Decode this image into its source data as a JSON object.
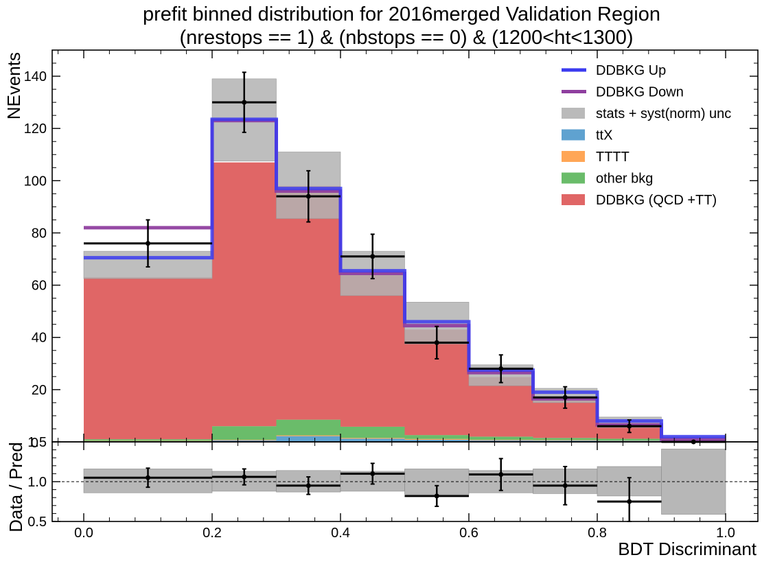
{
  "chart_data": {
    "type": "bar",
    "title_line1": "prefit binned distribution for 2016merged Validation Region",
    "title_line2": "(nrestops == 1) & (nbstops == 0) & (1200<ht<1300)",
    "xlabel": "BDT Discriminant",
    "ylabel_top": "NEvents",
    "ylabel_bottom": "Data / Pred",
    "xlim": [
      0.0,
      1.0
    ],
    "ylim_top": [
      0,
      150
    ],
    "ylim_bottom": [
      0.5,
      1.5
    ],
    "bin_edges": [
      0.0,
      0.2,
      0.3,
      0.4,
      0.5,
      0.6,
      0.7,
      0.8,
      0.9,
      1.0
    ],
    "x_ticks": [
      "0.0",
      "0.2",
      "0.4",
      "0.6",
      "0.8",
      "1.0"
    ],
    "y_ticks_top": [
      "20",
      "40",
      "60",
      "80",
      "100",
      "120",
      "140"
    ],
    "y_ticks_bottom": [
      "0.5",
      "1.0",
      "1.5"
    ],
    "top_axis_corner_label": "0",
    "colors": {
      "ddbkg": "#e06666",
      "otherbkg": "#6abc6a",
      "tttt": "#ffa656",
      "ttx": "#5fa2d0",
      "unc": "#b3b3b3",
      "up": "#3b3bf0",
      "down": "#8f3f9f"
    },
    "stack": [
      {
        "name": "ttX",
        "values": [
          0.3,
          0.6,
          2.2,
          1.2,
          0.8,
          0.6,
          0.5,
          0.4,
          0.2
        ]
      },
      {
        "name": "TTTT",
        "values": [
          0.1,
          0.2,
          0.3,
          0.3,
          0.3,
          0.2,
          0.2,
          0.1,
          0.1
        ]
      },
      {
        "name": "other bkg",
        "values": [
          0.6,
          5.2,
          6.0,
          4.3,
          1.5,
          1.2,
          0.8,
          0.7,
          0.2
        ]
      },
      {
        "name": "DDBKG (QCD +TT)",
        "values": [
          62.0,
          101.0,
          89.5,
          58.7,
          40.4,
          22.8,
          15.8,
          5.8,
          0.5
        ]
      }
    ],
    "unc_band": {
      "name": "stats + syst(norm) unc",
      "low": [
        62.5,
        107.5,
        85.5,
        56.0,
        37.5,
        21.5,
        15.0,
        5.5,
        0.0
      ],
      "high": [
        73.0,
        139.0,
        111.0,
        73.0,
        53.5,
        29.5,
        20.5,
        9.5,
        2.0
      ]
    },
    "ddbkg_up": {
      "name": "DDBKG Up",
      "values": [
        70.5,
        123.5,
        97.0,
        65.5,
        46.0,
        27.5,
        19.0,
        8.0,
        2.0
      ]
    },
    "ddbkg_down": {
      "name": "DDBKG Down",
      "values": [
        82.0,
        123.0,
        96.0,
        64.5,
        44.5,
        26.5,
        16.5,
        6.5,
        1.0
      ]
    },
    "data": {
      "values": [
        76,
        130,
        94,
        71,
        38,
        28,
        17,
        6,
        0
      ],
      "err": [
        9,
        11.5,
        9.8,
        8.5,
        6.2,
        5.3,
        4.1,
        2.4,
        0
      ]
    },
    "ratio": {
      "values": [
        1.05,
        1.06,
        0.95,
        1.1,
        0.82,
        1.09,
        0.95,
        0.75
      ],
      "err": [
        0.12,
        0.1,
        0.11,
        0.13,
        0.13,
        0.2,
        0.24,
        0.3
      ],
      "band_low": [
        0.86,
        0.88,
        0.87,
        0.88,
        0.84,
        0.86,
        0.85,
        0.82,
        0.59
      ],
      "band_high": [
        1.16,
        1.13,
        1.14,
        1.13,
        1.16,
        1.14,
        1.16,
        1.19,
        1.41
      ]
    },
    "legend": [
      {
        "label": "DDBKG Up",
        "kind": "line",
        "color": "#3b3bf0"
      },
      {
        "label": "DDBKG Down",
        "kind": "line",
        "color": "#8f3f9f"
      },
      {
        "label": "stats + syst(norm) unc",
        "kind": "patch",
        "color": "#b3b3b3"
      },
      {
        "label": "ttX",
        "kind": "patch",
        "color": "#5fa2d0"
      },
      {
        "label": "TTTT",
        "kind": "patch",
        "color": "#ffa656"
      },
      {
        "label": "other bkg",
        "kind": "patch",
        "color": "#6abc6a"
      },
      {
        "label": "DDBKG (QCD +TT)",
        "kind": "patch",
        "color": "#e06666"
      }
    ],
    "legend_position": "top-right",
    "grid": false
  }
}
